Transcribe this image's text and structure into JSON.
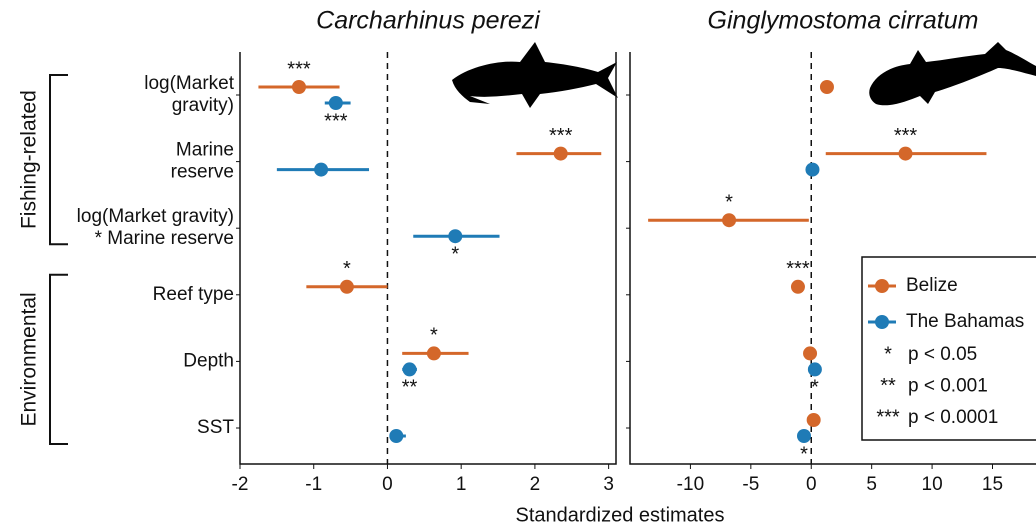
{
  "chart_data": [
    {
      "type": "forest",
      "title": "Carcharhinus perezi",
      "xlabel": "Standardized estimates",
      "categories": [
        [
          "log(Market",
          "gravity)"
        ],
        [
          "Marine",
          "reserve"
        ],
        [
          "log(Market gravity)",
          "* Marine reserve"
        ],
        [
          "Reef type"
        ],
        [
          "Depth"
        ],
        [
          "SST"
        ]
      ],
      "groups": [
        {
          "label": "Fishing-related",
          "rows": [
            0,
            2
          ]
        },
        {
          "label": "Environmental",
          "rows": [
            3,
            5
          ]
        }
      ],
      "xlim": [
        -2,
        3.1
      ],
      "xticks": [
        -2,
        -1,
        0,
        1,
        2,
        3
      ],
      "series": [
        {
          "name": "Belize",
          "color": "#d4672a",
          "values": [
            -1.2,
            2.35,
            null,
            -0.55,
            0.63,
            null
          ],
          "lower": [
            -1.75,
            1.75,
            null,
            -1.1,
            0.2,
            null
          ],
          "upper": [
            -0.65,
            2.9,
            null,
            0,
            1.1,
            null
          ],
          "significance": [
            "***",
            "***",
            null,
            "*",
            "*",
            null
          ]
        },
        {
          "name": "The Bahamas",
          "color": "#1f7bb6",
          "values": [
            -0.7,
            -0.9,
            0.92,
            null,
            0.3,
            0.12
          ],
          "lower": [
            -0.85,
            -1.5,
            0.35,
            null,
            0.2,
            0.05
          ],
          "upper": [
            -0.5,
            -0.25,
            1.52,
            null,
            0.4,
            0.25
          ],
          "significance": [
            "***",
            null,
            "*",
            null,
            "**",
            null
          ]
        }
      ]
    },
    {
      "type": "forest",
      "title": "Ginglymostoma cirratum",
      "xlim": [
        -15,
        18.6
      ],
      "xticks": [
        -10,
        -5,
        0,
        5,
        10,
        15
      ],
      "series": [
        {
          "name": "Belize",
          "color": "#d4672a",
          "values": [
            1.3,
            7.8,
            -6.8,
            -1.1,
            -0.1,
            0.2
          ],
          "lower": [
            1.3,
            1.2,
            -13.5,
            -1.1,
            -0.1,
            0.2
          ],
          "upper": [
            1.3,
            14.5,
            -0.2,
            -1.1,
            -0.1,
            0.2
          ],
          "significance": [
            null,
            "***",
            "*",
            "***",
            null,
            null
          ]
        },
        {
          "name": "The Bahamas",
          "color": "#1f7bb6",
          "values": [
            null,
            0.1,
            null,
            null,
            0.3,
            -0.6
          ],
          "lower": [
            null,
            0.1,
            null,
            null,
            0.3,
            -0.6
          ],
          "upper": [
            null,
            0.1,
            null,
            null,
            0.3,
            -0.6
          ],
          "significance": [
            null,
            null,
            null,
            null,
            "*",
            "*"
          ]
        }
      ],
      "legend": "right",
      "significance_key": [
        {
          "symbol": "*",
          "text": "p < 0.05"
        },
        {
          "symbol": "**",
          "text": "p < 0.001"
        },
        {
          "symbol": "***",
          "text": "p < 0.0001"
        }
      ]
    }
  ]
}
